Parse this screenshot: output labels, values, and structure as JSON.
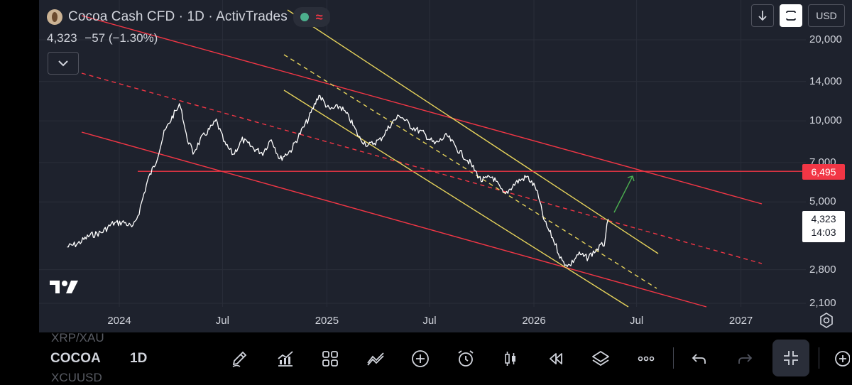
{
  "header": {
    "title": "Cocoa Cash CFD · 1D · ActivTrades",
    "price": "4,323",
    "change": "−57 (−1.30%)",
    "wave_glyph": "≈"
  },
  "top_controls": {
    "currency": "USD"
  },
  "price_axis": {
    "labels": [
      "20,000",
      "14,000",
      "10,000",
      "7,000",
      "5,000",
      "2,800",
      "2,100"
    ],
    "horizontal_level_tag": "6,495",
    "last_price_tag": "4,323",
    "countdown": "14:03"
  },
  "time_axis": {
    "labels": [
      "2024",
      "Jul",
      "2025",
      "Jul",
      "2026",
      "Jul",
      "2027"
    ]
  },
  "bottom_bar": {
    "symbol": "COCOA",
    "interval": "1D",
    "ghost_above": "XRP/XAU",
    "ghost_below": "XCUUSD",
    "tools": [
      "pencil-icon",
      "indicators-icon",
      "layout-icon",
      "compare-icon",
      "add-icon",
      "alert-icon",
      "candles-icon",
      "replay-icon",
      "layers-icon",
      "more-icon",
      "undo-icon",
      "redo-icon",
      "fullscreen-exit-icon",
      "ticker-icon"
    ]
  },
  "colors": {
    "background": "#1e222d",
    "price_line": "#ffffff",
    "trend_red": "#f23645",
    "trend_yellow": "#e6d35b",
    "arrow_green": "#4caf50",
    "level_red": "#f23645"
  },
  "chart_data": {
    "type": "line",
    "symbol": "Cocoa Cash CFD",
    "interval": "1D",
    "scale": "log",
    "x_range": [
      "2023-10-01",
      "2027-03-01"
    ],
    "y_range": [
      2100,
      20000
    ],
    "series": [
      {
        "points": [
          [
            "2023-10-01",
            3400
          ],
          [
            "2023-10-20",
            3500
          ],
          [
            "2023-11-10",
            3750
          ],
          [
            "2023-12-01",
            3850
          ],
          [
            "2023-12-20",
            4150
          ],
          [
            "2024-01-10",
            4200
          ],
          [
            "2024-01-25",
            4000
          ],
          [
            "2024-02-05",
            4600
          ],
          [
            "2024-02-20",
            6000
          ],
          [
            "2024-03-05",
            7000
          ],
          [
            "2024-03-20",
            9000
          ],
          [
            "2024-04-05",
            10500
          ],
          [
            "2024-04-18",
            11500
          ],
          [
            "2024-04-28",
            8800
          ],
          [
            "2024-05-10",
            7600
          ],
          [
            "2024-05-25",
            8600
          ],
          [
            "2024-06-10",
            9400
          ],
          [
            "2024-06-20",
            10000
          ],
          [
            "2024-07-05",
            8200
          ],
          [
            "2024-07-20",
            7500
          ],
          [
            "2024-08-05",
            8500
          ],
          [
            "2024-08-25",
            7900
          ],
          [
            "2024-09-10",
            7600
          ],
          [
            "2024-09-25",
            8600
          ],
          [
            "2024-10-10",
            7200
          ],
          [
            "2024-10-30",
            7800
          ],
          [
            "2024-11-15",
            9000
          ],
          [
            "2024-11-30",
            10200
          ],
          [
            "2024-12-18",
            12500
          ],
          [
            "2025-01-05",
            11000
          ],
          [
            "2025-01-25",
            11300
          ],
          [
            "2025-02-10",
            10200
          ],
          [
            "2025-02-28",
            8600
          ],
          [
            "2025-03-15",
            8100
          ],
          [
            "2025-04-05",
            8500
          ],
          [
            "2025-04-25",
            9800
          ],
          [
            "2025-05-10",
            10500
          ],
          [
            "2025-05-30",
            9500
          ],
          [
            "2025-06-20",
            9000
          ],
          [
            "2025-07-10",
            8200
          ],
          [
            "2025-08-01",
            8800
          ],
          [
            "2025-08-20",
            7800
          ],
          [
            "2025-09-10",
            7000
          ],
          [
            "2025-09-30",
            6000
          ],
          [
            "2025-10-20",
            6200
          ],
          [
            "2025-11-10",
            5300
          ],
          [
            "2025-11-30",
            5900
          ],
          [
            "2025-12-20",
            6200
          ],
          [
            "2026-01-05",
            5600
          ],
          [
            "2026-01-20",
            4200
          ],
          [
            "2026-02-05",
            3600
          ],
          [
            "2026-02-20",
            3000
          ],
          [
            "2026-03-05",
            2900
          ],
          [
            "2026-03-20",
            3200
          ],
          [
            "2026-04-05",
            3100
          ],
          [
            "2026-04-20",
            3300
          ],
          [
            "2026-05-05",
            3500
          ],
          [
            "2026-05-12",
            4323
          ]
        ]
      }
    ],
    "horizontal_level": 6495,
    "last_price": 4323
  }
}
